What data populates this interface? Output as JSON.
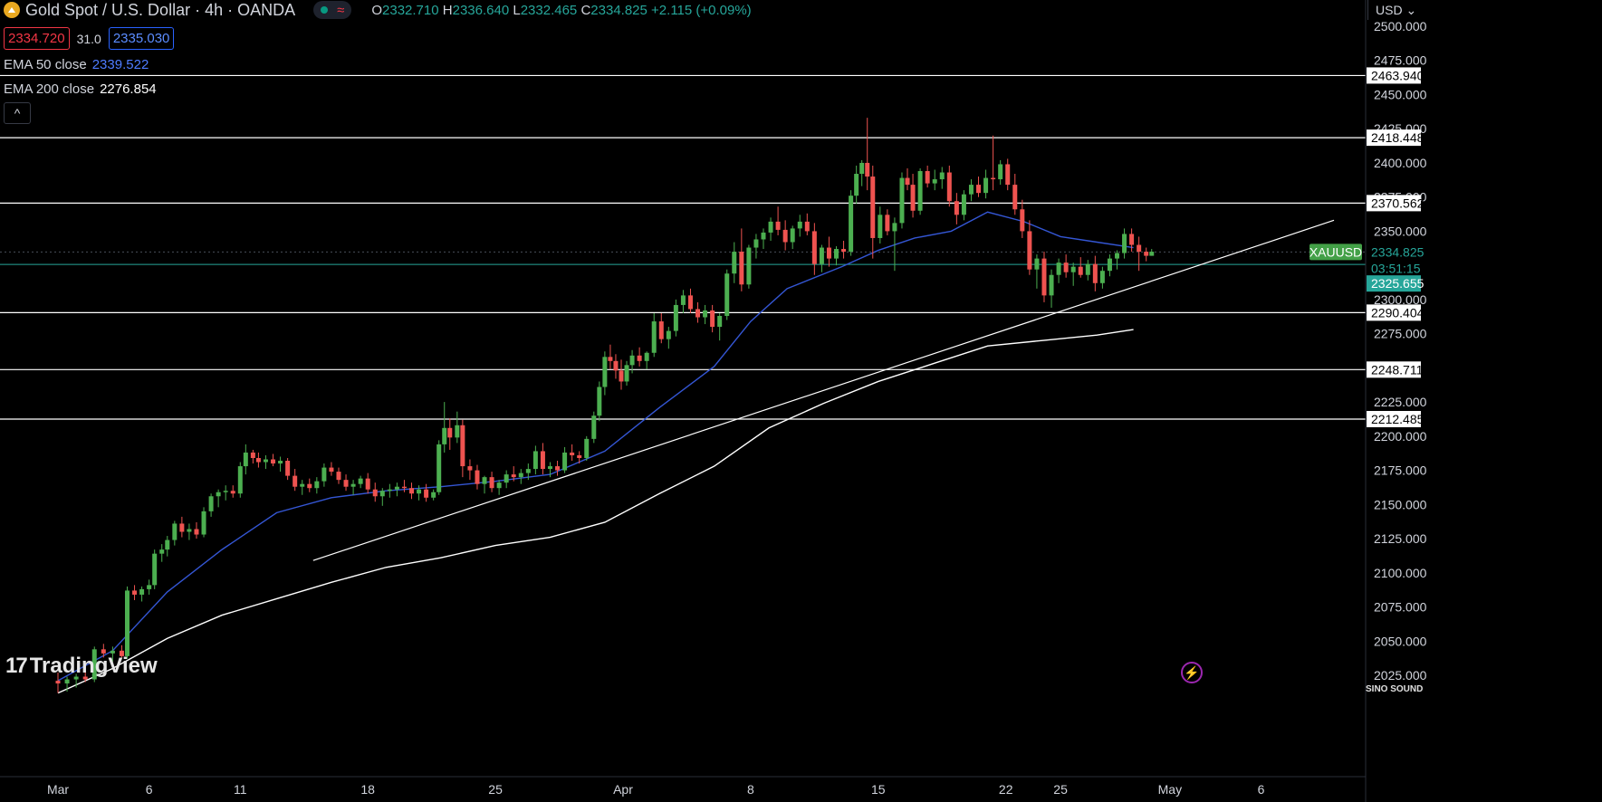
{
  "header": {
    "title": "Gold Spot / U.S. Dollar · 4h · OANDA",
    "ohlc": {
      "o_label": "O",
      "o": "2332.710",
      "h_label": "H",
      "h": "2336.640",
      "l_label": "L",
      "l": "2332.465",
      "c_label": "C",
      "c": "2334.825",
      "change": "+2.115 (+0.09%)"
    },
    "wave_icon": "≈"
  },
  "quote": {
    "sell": "2334.720",
    "spread": "31.0",
    "buy": "2335.030"
  },
  "indicators": {
    "ema50_label": "EMA 50 close",
    "ema50_value": "2339.522",
    "ema200_label": "EMA 200 close",
    "ema200_value": "2276.854"
  },
  "collapse_icon": "^",
  "currency": "USD ⌄",
  "branding": {
    "tv_mark": "17",
    "tv_word": "TradingView",
    "sino": "SINO SOUND"
  },
  "colors": {
    "bg": "#000000",
    "up": "#4caf50",
    "down": "#ef5350",
    "ema50": "#3456d4",
    "ema200": "#ffffff",
    "current_price": "#26a69a",
    "level_line": "#ffffff"
  },
  "chart_data": {
    "type": "candlestick",
    "title": "Gold Spot / U.S. Dollar · 4h · OANDA",
    "ylim": [
      2018,
      2510
    ],
    "y_ticks": [
      2025,
      2050,
      2075,
      2100,
      2125,
      2150,
      2175,
      2200,
      2225,
      2250,
      2275,
      2300,
      2325,
      2350,
      2375,
      2400,
      2425,
      2450,
      2475,
      2500
    ],
    "y_tick_labels": [
      "2025.000",
      "2050.000",
      "2075.000",
      "2100.000",
      "2125.000",
      "2150.000",
      "2175.000",
      "2200.000",
      "2225.000",
      "",
      "2275.000",
      "2300.000",
      "",
      "2350.000",
      "2375.000",
      "2400.000",
      "2425.000",
      "2450.000",
      "2475.000",
      "2500.000"
    ],
    "x_ticks": [
      {
        "label": "Mar",
        "day": 0
      },
      {
        "label": "6",
        "day": 5
      },
      {
        "label": "11",
        "day": 10
      },
      {
        "label": "18",
        "day": 17
      },
      {
        "label": "25",
        "day": 24
      },
      {
        "label": "Apr",
        "day": 31
      },
      {
        "label": "8",
        "day": 38
      },
      {
        "label": "15",
        "day": 45
      },
      {
        "label": "22",
        "day": 52
      },
      {
        "label": "25",
        "day": 55
      },
      {
        "label": "May",
        "day": 61
      },
      {
        "label": "6",
        "day": 66
      }
    ],
    "horizontal_levels": [
      {
        "value": 2463.94,
        "label": "2463.940"
      },
      {
        "value": 2418.448,
        "label": "2418.448"
      },
      {
        "value": 2370.562,
        "label": "2370.562"
      },
      {
        "value": 2290.404,
        "label": "2290.404"
      },
      {
        "value": 2248.711,
        "label": "2248.711"
      },
      {
        "value": 2212.485,
        "label": "2212.485"
      }
    ],
    "current_price": {
      "symbol": "XAUUSD",
      "value": 2334.825,
      "label": "2334.825",
      "countdown": "03:51:15"
    },
    "bid_line": {
      "value": 2325.655,
      "label": "2325.655"
    },
    "trendline": [
      {
        "day": 14,
        "price": 2109
      },
      {
        "day": 70,
        "price": 2358
      }
    ],
    "ema50": [
      [
        0,
        2021
      ],
      [
        3,
        2043
      ],
      [
        6,
        2086
      ],
      [
        9,
        2117
      ],
      [
        12,
        2144
      ],
      [
        15,
        2155
      ],
      [
        18,
        2160
      ],
      [
        21,
        2163
      ],
      [
        24,
        2167
      ],
      [
        27,
        2172
      ],
      [
        30,
        2189
      ],
      [
        33,
        2221
      ],
      [
        36,
        2251
      ],
      [
        38,
        2284
      ],
      [
        40,
        2308
      ],
      [
        43,
        2324
      ],
      [
        45,
        2336
      ],
      [
        47,
        2345
      ],
      [
        49,
        2350
      ],
      [
        51,
        2364
      ],
      [
        53,
        2357
      ],
      [
        55,
        2346
      ],
      [
        57,
        2342
      ],
      [
        59,
        2338
      ]
    ],
    "ema200": [
      [
        0,
        2012
      ],
      [
        3,
        2030
      ],
      [
        6,
        2052
      ],
      [
        9,
        2069
      ],
      [
        12,
        2081
      ],
      [
        15,
        2093
      ],
      [
        18,
        2104
      ],
      [
        21,
        2111
      ],
      [
        24,
        2120
      ],
      [
        27,
        2126
      ],
      [
        30,
        2137
      ],
      [
        33,
        2158
      ],
      [
        36,
        2178
      ],
      [
        39,
        2206
      ],
      [
        42,
        2224
      ],
      [
        45,
        2240
      ],
      [
        48,
        2253
      ],
      [
        51,
        2266
      ],
      [
        54,
        2270
      ],
      [
        57,
        2274
      ],
      [
        59,
        2278
      ]
    ],
    "candles": [
      [
        0,
        2021,
        2027,
        2012,
        2019
      ],
      [
        0.5,
        2019,
        2024,
        2013,
        2022
      ],
      [
        1,
        2022,
        2026,
        2016,
        2024
      ],
      [
        1.5,
        2024,
        2029,
        2020,
        2022
      ],
      [
        2,
        2022,
        2046,
        2020,
        2044
      ],
      [
        2.5,
        2044,
        2048,
        2038,
        2041
      ],
      [
        3,
        2041,
        2046,
        2035,
        2043
      ],
      [
        3.5,
        2043,
        2047,
        2038,
        2039
      ],
      [
        3.8,
        2039,
        2090,
        2037,
        2087
      ],
      [
        4.2,
        2087,
        2091,
        2080,
        2084
      ],
      [
        4.6,
        2084,
        2090,
        2079,
        2088
      ],
      [
        5,
        2088,
        2095,
        2084,
        2091
      ],
      [
        5.3,
        2091,
        2117,
        2088,
        2114
      ],
      [
        5.7,
        2114,
        2121,
        2108,
        2117
      ],
      [
        6,
        2117,
        2127,
        2112,
        2124
      ],
      [
        6.4,
        2124,
        2138,
        2120,
        2136
      ],
      [
        6.8,
        2136,
        2141,
        2126,
        2130
      ],
      [
        7.2,
        2130,
        2136,
        2124,
        2132
      ],
      [
        7.6,
        2132,
        2137,
        2125,
        2128
      ],
      [
        8,
        2128,
        2148,
        2126,
        2145
      ],
      [
        8.4,
        2145,
        2158,
        2141,
        2156
      ],
      [
        8.8,
        2156,
        2161,
        2148,
        2159
      ],
      [
        9.2,
        2159,
        2164,
        2153,
        2160
      ],
      [
        9.6,
        2160,
        2164,
        2155,
        2158
      ],
      [
        10,
        2158,
        2181,
        2155,
        2178
      ],
      [
        10.3,
        2178,
        2194,
        2172,
        2188
      ],
      [
        10.7,
        2188,
        2190,
        2180,
        2184
      ],
      [
        11,
        2184,
        2188,
        2177,
        2181
      ],
      [
        11.4,
        2181,
        2186,
        2176,
        2183
      ],
      [
        11.8,
        2183,
        2187,
        2178,
        2180
      ],
      [
        12.2,
        2180,
        2185,
        2174,
        2182
      ],
      [
        12.6,
        2182,
        2184,
        2168,
        2171
      ],
      [
        13,
        2171,
        2176,
        2160,
        2163
      ],
      [
        13.4,
        2163,
        2168,
        2157,
        2165
      ],
      [
        13.8,
        2165,
        2169,
        2159,
        2162
      ],
      [
        14.2,
        2162,
        2170,
        2158,
        2167
      ],
      [
        14.6,
        2167,
        2180,
        2163,
        2177
      ],
      [
        15,
        2177,
        2181,
        2171,
        2174
      ],
      [
        15.4,
        2174,
        2177,
        2165,
        2168
      ],
      [
        15.8,
        2168,
        2172,
        2160,
        2163
      ],
      [
        16.2,
        2163,
        2168,
        2157,
        2165
      ],
      [
        16.6,
        2165,
        2171,
        2162,
        2169
      ],
      [
        17,
        2169,
        2173,
        2158,
        2161
      ],
      [
        17.4,
        2161,
        2166,
        2152,
        2156
      ],
      [
        17.8,
        2156,
        2162,
        2149,
        2160
      ],
      [
        18.2,
        2160,
        2165,
        2155,
        2161
      ],
      [
        18.6,
        2161,
        2166,
        2156,
        2163
      ],
      [
        19,
        2163,
        2168,
        2159,
        2162
      ],
      [
        19.4,
        2162,
        2166,
        2154,
        2158
      ],
      [
        19.8,
        2158,
        2164,
        2153,
        2161
      ],
      [
        20.2,
        2161,
        2165,
        2152,
        2155
      ],
      [
        20.6,
        2155,
        2161,
        2153,
        2159
      ],
      [
        20.9,
        2159,
        2197,
        2157,
        2194
      ],
      [
        21.2,
        2194,
        2225,
        2188,
        2206
      ],
      [
        21.5,
        2206,
        2213,
        2190,
        2199
      ],
      [
        21.9,
        2199,
        2218,
        2195,
        2208
      ],
      [
        22.2,
        2208,
        2212,
        2170,
        2178
      ],
      [
        22.6,
        2178,
        2183,
        2168,
        2175
      ],
      [
        23,
        2175,
        2179,
        2161,
        2165
      ],
      [
        23.4,
        2165,
        2171,
        2158,
        2170
      ],
      [
        23.8,
        2170,
        2174,
        2159,
        2162
      ],
      [
        24.2,
        2162,
        2168,
        2157,
        2166
      ],
      [
        24.6,
        2166,
        2175,
        2162,
        2172
      ],
      [
        25,
        2172,
        2178,
        2167,
        2170
      ],
      [
        25.4,
        2170,
        2176,
        2165,
        2173
      ],
      [
        25.8,
        2173,
        2180,
        2168,
        2176
      ],
      [
        26.2,
        2176,
        2193,
        2172,
        2189
      ],
      [
        26.6,
        2189,
        2195,
        2172,
        2176
      ],
      [
        27,
        2176,
        2181,
        2170,
        2178
      ],
      [
        27.4,
        2178,
        2182,
        2171,
        2175
      ],
      [
        27.8,
        2175,
        2192,
        2173,
        2188
      ],
      [
        28.2,
        2188,
        2194,
        2182,
        2186
      ],
      [
        28.6,
        2186,
        2189,
        2180,
        2184
      ],
      [
        29,
        2184,
        2200,
        2182,
        2198
      ],
      [
        29.4,
        2198,
        2218,
        2195,
        2215
      ],
      [
        29.7,
        2215,
        2240,
        2211,
        2236
      ],
      [
        30,
        2236,
        2262,
        2230,
        2258
      ],
      [
        30.3,
        2258,
        2267,
        2249,
        2255
      ],
      [
        30.6,
        2255,
        2260,
        2242,
        2248
      ],
      [
        30.9,
        2248,
        2256,
        2234,
        2240
      ],
      [
        31.2,
        2240,
        2255,
        2237,
        2252
      ],
      [
        31.5,
        2252,
        2263,
        2246,
        2259
      ],
      [
        31.9,
        2259,
        2265,
        2251,
        2255
      ],
      [
        32.3,
        2255,
        2262,
        2249,
        2261
      ],
      [
        32.7,
        2261,
        2290,
        2258,
        2284
      ],
      [
        33.1,
        2284,
        2290,
        2268,
        2271
      ],
      [
        33.5,
        2271,
        2280,
        2264,
        2277
      ],
      [
        33.9,
        2277,
        2300,
        2273,
        2296
      ],
      [
        34.3,
        2296,
        2307,
        2290,
        2303
      ],
      [
        34.7,
        2303,
        2308,
        2290,
        2293
      ],
      [
        35.1,
        2293,
        2298,
        2283,
        2287
      ],
      [
        35.5,
        2287,
        2296,
        2282,
        2292
      ],
      [
        35.9,
        2292,
        2296,
        2276,
        2280
      ],
      [
        36.3,
        2280,
        2290,
        2270,
        2288
      ],
      [
        36.7,
        2288,
        2322,
        2285,
        2319
      ],
      [
        37.1,
        2319,
        2342,
        2312,
        2335
      ],
      [
        37.5,
        2335,
        2352,
        2306,
        2311
      ],
      [
        37.9,
        2311,
        2340,
        2308,
        2338
      ],
      [
        38.3,
        2338,
        2348,
        2330,
        2344
      ],
      [
        38.7,
        2344,
        2352,
        2337,
        2349
      ],
      [
        39.1,
        2349,
        2360,
        2343,
        2357
      ],
      [
        39.5,
        2357,
        2368,
        2347,
        2351
      ],
      [
        39.9,
        2351,
        2358,
        2336,
        2342
      ],
      [
        40.3,
        2342,
        2354,
        2337,
        2352
      ],
      [
        40.7,
        2352,
        2362,
        2346,
        2357
      ],
      [
        41.1,
        2357,
        2363,
        2347,
        2350
      ],
      [
        41.5,
        2350,
        2356,
        2318,
        2326
      ],
      [
        41.9,
        2326,
        2340,
        2320,
        2338
      ],
      [
        42.3,
        2338,
        2346,
        2324,
        2330
      ],
      [
        42.7,
        2330,
        2339,
        2325,
        2337
      ],
      [
        43.1,
        2337,
        2343,
        2330,
        2335
      ],
      [
        43.5,
        2335,
        2380,
        2332,
        2376
      ],
      [
        43.8,
        2376,
        2398,
        2370,
        2392
      ],
      [
        44.1,
        2392,
        2402,
        2383,
        2400
      ],
      [
        44.4,
        2400,
        2433,
        2380,
        2390
      ],
      [
        44.7,
        2390,
        2398,
        2330,
        2345
      ],
      [
        45.1,
        2345,
        2368,
        2341,
        2362
      ],
      [
        45.5,
        2362,
        2366,
        2347,
        2350
      ],
      [
        45.9,
        2350,
        2360,
        2321,
        2356
      ],
      [
        46.3,
        2356,
        2393,
        2352,
        2389
      ],
      [
        46.6,
        2389,
        2396,
        2380,
        2384
      ],
      [
        46.9,
        2384,
        2392,
        2360,
        2365
      ],
      [
        47.3,
        2365,
        2396,
        2362,
        2394
      ],
      [
        47.7,
        2394,
        2398,
        2382,
        2385
      ],
      [
        48.1,
        2385,
        2395,
        2380,
        2388
      ],
      [
        48.5,
        2388,
        2397,
        2381,
        2393
      ],
      [
        48.9,
        2393,
        2398,
        2368,
        2372
      ],
      [
        49.3,
        2372,
        2378,
        2355,
        2362
      ],
      [
        49.7,
        2362,
        2380,
        2358,
        2377
      ],
      [
        50.1,
        2377,
        2388,
        2372,
        2384
      ],
      [
        50.5,
        2384,
        2390,
        2375,
        2378
      ],
      [
        50.9,
        2378,
        2395,
        2374,
        2389
      ],
      [
        51.3,
        2389,
        2420,
        2380,
        2388
      ],
      [
        51.7,
        2388,
        2402,
        2384,
        2399
      ],
      [
        52.1,
        2399,
        2403,
        2380,
        2384
      ],
      [
        52.5,
        2384,
        2392,
        2362,
        2366
      ],
      [
        52.9,
        2366,
        2373,
        2345,
        2350
      ],
      [
        53.3,
        2350,
        2358,
        2318,
        2322
      ],
      [
        53.7,
        2322,
        2333,
        2308,
        2330
      ],
      [
        54.1,
        2330,
        2335,
        2298,
        2303
      ],
      [
        54.5,
        2303,
        2322,
        2294,
        2318
      ],
      [
        54.9,
        2318,
        2330,
        2312,
        2327
      ],
      [
        55.3,
        2327,
        2333,
        2316,
        2320
      ],
      [
        55.7,
        2320,
        2327,
        2310,
        2324
      ],
      [
        56.1,
        2324,
        2331,
        2316,
        2318
      ],
      [
        56.5,
        2318,
        2329,
        2314,
        2326
      ],
      [
        56.9,
        2326,
        2332,
        2306,
        2312
      ],
      [
        57.3,
        2312,
        2324,
        2308,
        2321
      ],
      [
        57.7,
        2321,
        2333,
        2317,
        2330
      ],
      [
        58.1,
        2330,
        2336,
        2322,
        2334
      ],
      [
        58.5,
        2334,
        2352,
        2330,
        2348
      ],
      [
        58.9,
        2348,
        2352,
        2335,
        2340
      ],
      [
        59.3,
        2340,
        2346,
        2321,
        2335
      ],
      [
        59.7,
        2335,
        2338,
        2328,
        2332
      ],
      [
        60,
        2332,
        2337,
        2332,
        2335
      ]
    ]
  }
}
